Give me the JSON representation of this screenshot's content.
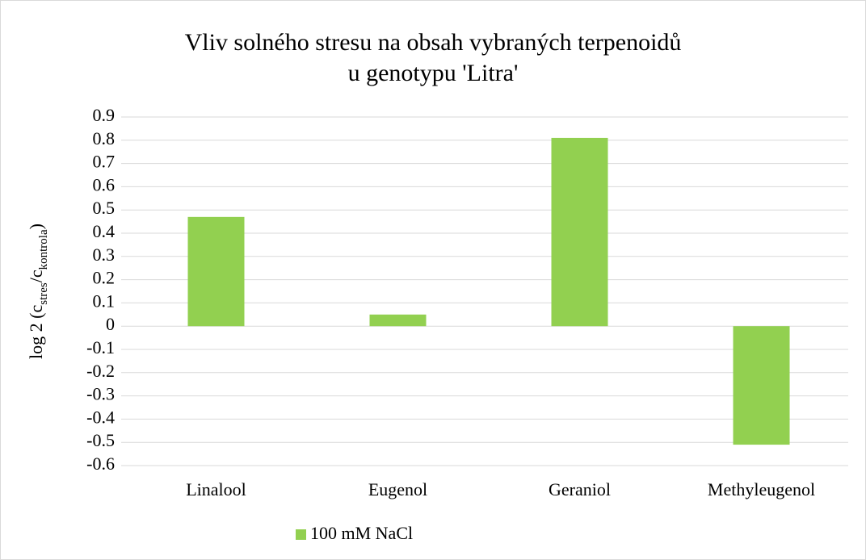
{
  "chart_data": {
    "type": "bar",
    "title": [
      "Vliv solného stresu na obsah vybraných terpenoidů",
      "u genotypu 'Litra'"
    ],
    "ylabel": {
      "main": "log 2 (c",
      "sub1": "stres",
      "mid": "/c",
      "sub2": "kontrola",
      "end": ")"
    },
    "categories": [
      "Linalool",
      "Eugenol",
      "Geraniol",
      "Methyleugenol"
    ],
    "series": [
      {
        "name": "100 mM NaCl",
        "color": "#92d050",
        "values": [
          0.47,
          0.05,
          0.81,
          -0.51
        ]
      }
    ],
    "ylim": [
      -0.6,
      0.9
    ],
    "yticks": [
      -0.6,
      -0.5,
      -0.4,
      -0.3,
      -0.2,
      -0.1,
      0,
      0.1,
      0.2,
      0.3,
      0.4,
      0.5,
      0.6,
      0.7,
      0.8,
      0.9
    ],
    "grid": true,
    "legend": "bottom"
  }
}
